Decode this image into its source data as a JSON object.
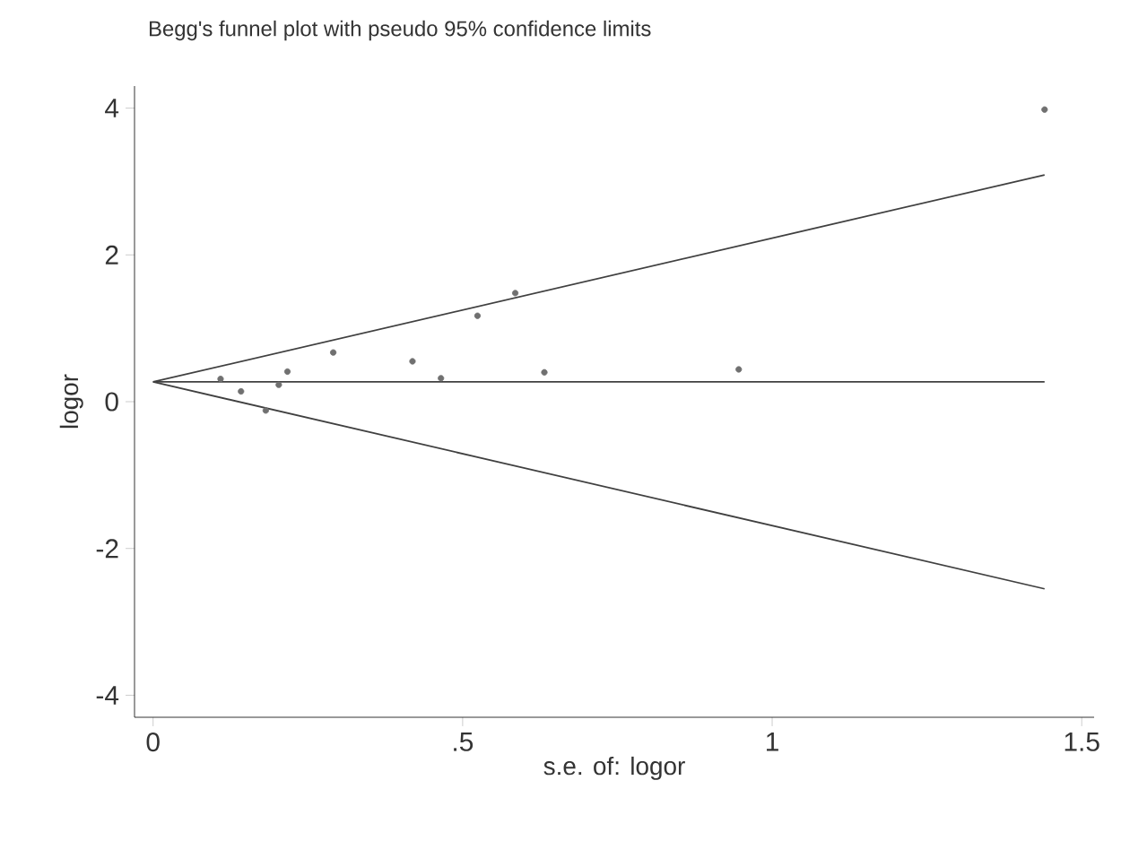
{
  "chart_data": {
    "type": "scatter",
    "title": "Begg's funnel plot with pseudo 95% confidence limits",
    "xlabel": "s.e. of: logor",
    "ylabel": "logor",
    "xlim": [
      -0.03,
      1.52
    ],
    "ylim": [
      -4.3,
      4.3
    ],
    "xticks": [
      0,
      {
        "value": 0.5,
        "label": ".5"
      },
      1,
      1.5
    ],
    "yticks": [
      -4,
      -2,
      0,
      2,
      4
    ],
    "series": [
      {
        "marker": "circle",
        "color": "#707070",
        "x": [
          0.109,
          0.142,
          0.182,
          0.203,
          0.217,
          0.291,
          0.419,
          0.465,
          0.524,
          0.585,
          0.632,
          0.946,
          1.44
        ],
        "values": [
          0.31,
          0.14,
          -0.12,
          0.23,
          0.41,
          0.67,
          0.55,
          0.32,
          1.17,
          1.48,
          0.4,
          0.44,
          3.98
        ]
      },
      {
        "type": "line",
        "marker": "none",
        "color": "#404040",
        "x": [
          0,
          1.44
        ],
        "values": [
          0.27,
          3.09
        ]
      },
      {
        "type": "line",
        "marker": "none",
        "color": "#404040",
        "x": [
          0,
          1.44
        ],
        "values": [
          0.27,
          0.27
        ]
      },
      {
        "type": "line",
        "marker": "none",
        "color": "#404040",
        "x": [
          0,
          1.44
        ],
        "values": [
          0.27,
          -2.55
        ]
      }
    ]
  }
}
